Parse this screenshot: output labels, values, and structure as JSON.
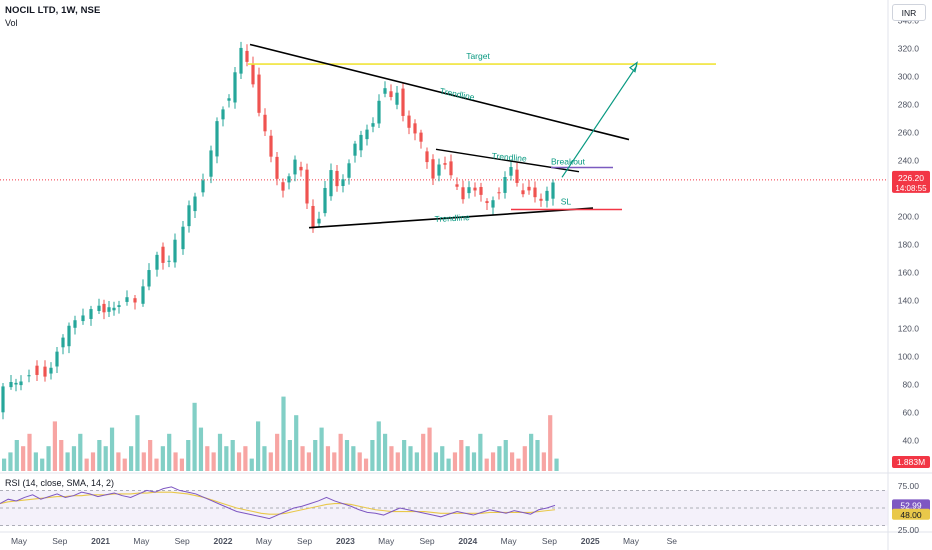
{
  "header": {
    "title": "NOCIL LTD, 1W, NSE",
    "vol_label": "Vol",
    "rsi_label": "RSI (14, close, SMA, 14, 2)",
    "currency": "INR"
  },
  "price_label": "226.20",
  "countdown_label": "14:08:55",
  "volume_label": "1.883M",
  "rsi_value_label": "52.99",
  "rsi_ma_label": "48.00",
  "colors": {
    "up": "#26a69a",
    "down": "#ef5350",
    "vol_up": "#82cfc6",
    "vol_down": "#f7a5a3",
    "target": "#f1e43a",
    "trend": "#000000",
    "arrow": "#089981",
    "breakout": "#7b5bc0",
    "sl": "#f23645",
    "rsi": "#7e57c2",
    "rsi_ma": "#e9c84a"
  },
  "annotations": {
    "target": "Target",
    "trendline_upper": "Trendline",
    "trendline_inner": "Trendline",
    "trendline_lower": "Trendline",
    "breakout": "Breakout",
    "sl": "SL"
  },
  "chart_data": {
    "type": "candlestick",
    "symbol": "NOCIL LTD",
    "interval": "1W",
    "exchange": "NSE",
    "y_axis": {
      "ticks": [
        340,
        320,
        300,
        280,
        260,
        240,
        220,
        200,
        180,
        160,
        140,
        120,
        100,
        80,
        60,
        40
      ],
      "range": [
        37,
        342
      ]
    },
    "x_axis": {
      "ticks": [
        "May",
        "Sep",
        "2021",
        "May",
        "Sep",
        "2022",
        "May",
        "Sep",
        "2023",
        "May",
        "Sep",
        "2024",
        "May",
        "Sep",
        "2025",
        "May",
        "Se"
      ]
    },
    "rsi_axis": {
      "ticks": [
        75,
        50,
        25
      ],
      "range": [
        25,
        75
      ]
    },
    "price_path": [
      [
        0,
        60
      ],
      [
        8,
        75
      ],
      [
        18,
        82
      ],
      [
        26,
        85
      ],
      [
        34,
        90
      ],
      [
        42,
        90
      ],
      [
        48,
        88
      ],
      [
        54,
        95
      ],
      [
        60,
        103
      ],
      [
        66,
        110
      ],
      [
        72,
        120
      ],
      [
        80,
        128
      ],
      [
        88,
        130
      ],
      [
        96,
        133
      ],
      [
        106,
        135
      ],
      [
        116,
        133
      ],
      [
        124,
        140
      ],
      [
        132,
        145
      ],
      [
        140,
        140
      ],
      [
        146,
        150
      ],
      [
        154,
        165
      ],
      [
        160,
        175
      ],
      [
        166,
        170
      ],
      [
        172,
        168
      ],
      [
        180,
        180
      ],
      [
        186,
        190
      ],
      [
        192,
        205
      ],
      [
        200,
        215
      ],
      [
        208,
        225
      ],
      [
        214,
        245
      ],
      [
        220,
        270
      ],
      [
        226,
        280
      ],
      [
        232,
        285
      ],
      [
        238,
        300
      ],
      [
        244,
        318
      ],
      [
        250,
        312
      ],
      [
        256,
        298
      ],
      [
        262,
        275
      ],
      [
        268,
        258
      ],
      [
        274,
        240
      ],
      [
        280,
        228
      ],
      [
        286,
        222
      ],
      [
        292,
        230
      ],
      [
        298,
        238
      ],
      [
        304,
        230
      ],
      [
        310,
        210
      ],
      [
        316,
        195
      ],
      [
        322,
        200
      ],
      [
        328,
        218
      ],
      [
        334,
        230
      ],
      [
        340,
        222
      ],
      [
        346,
        230
      ],
      [
        352,
        240
      ],
      [
        358,
        250
      ],
      [
        364,
        255
      ],
      [
        370,
        262
      ],
      [
        376,
        270
      ],
      [
        382,
        285
      ],
      [
        388,
        290
      ],
      [
        394,
        282
      ],
      [
        400,
        288
      ],
      [
        406,
        275
      ],
      [
        412,
        266
      ],
      [
        418,
        258
      ],
      [
        424,
        250
      ],
      [
        430,
        238
      ],
      [
        436,
        230
      ],
      [
        442,
        240
      ],
      [
        448,
        236
      ],
      [
        454,
        226
      ],
      [
        460,
        220
      ],
      [
        466,
        215
      ],
      [
        472,
        224
      ],
      [
        478,
        218
      ],
      [
        484,
        212
      ],
      [
        490,
        208
      ],
      [
        496,
        214
      ],
      [
        502,
        220
      ],
      [
        508,
        228
      ],
      [
        514,
        232
      ],
      [
        520,
        222
      ],
      [
        526,
        218
      ],
      [
        532,
        222
      ],
      [
        538,
        214
      ],
      [
        544,
        208
      ],
      [
        550,
        216
      ],
      [
        556,
        226
      ]
    ],
    "volume_m": [
      2,
      3,
      5,
      4,
      6,
      3,
      2,
      4,
      8,
      5,
      3,
      4,
      6,
      2,
      3,
      5,
      4,
      7,
      3,
      2,
      4,
      9,
      3,
      5,
      2,
      4,
      6,
      3,
      2,
      5,
      11,
      7,
      4,
      3,
      6,
      4,
      5,
      3,
      4,
      2,
      8,
      4,
      3,
      6,
      12,
      5,
      9,
      4,
      3,
      5,
      7,
      4,
      3,
      6,
      5,
      4,
      3,
      2,
      5,
      8,
      6,
      4,
      3,
      5,
      4,
      3,
      6,
      7,
      3,
      4,
      2,
      3,
      5,
      4,
      3,
      6,
      2,
      3,
      4,
      5,
      3,
      2,
      4,
      6,
      5,
      3,
      9,
      2
    ],
    "rsi": [
      55,
      60,
      58,
      62,
      65,
      60,
      63,
      66,
      62,
      64,
      68,
      66,
      63,
      65,
      67,
      64,
      62,
      66,
      70,
      68,
      72,
      74,
      70,
      68,
      66,
      62,
      58,
      54,
      50,
      46,
      44,
      42,
      40,
      38,
      42,
      46,
      50,
      52,
      55,
      58,
      62,
      58,
      55,
      52,
      48,
      45,
      44,
      42,
      46,
      50,
      48,
      46,
      44,
      42,
      40,
      43,
      46,
      44,
      42,
      45,
      48,
      46,
      44,
      47,
      45,
      43,
      48,
      50,
      53
    ],
    "rsi_ma": [
      55,
      57,
      58,
      59,
      60,
      61,
      62,
      63,
      63,
      64,
      64,
      65,
      65,
      65,
      66,
      66,
      66,
      67,
      67,
      68,
      68,
      68,
      67,
      66,
      64,
      62,
      59,
      56,
      53,
      50,
      48,
      46,
      44,
      43,
      43,
      44,
      46,
      48,
      50,
      52,
      54,
      55,
      55,
      54,
      52,
      50,
      48,
      47,
      46,
      46,
      46,
      46,
      46,
      45,
      44,
      44,
      44,
      44,
      44,
      44,
      45,
      45,
      45,
      45,
      45,
      45,
      46,
      47,
      48
    ],
    "levels": {
      "target": 309,
      "breakout": 235,
      "sl": 205
    },
    "trendlines": {
      "upper": {
        "from": [
          "2021-Sep",
          323
        ],
        "to": [
          "2024-Jan",
          255
        ]
      },
      "lower": {
        "from": [
          "2022-Jan",
          192
        ],
        "to": [
          "2023-Sep",
          206
        ]
      },
      "inner": {
        "from": [
          "2022-Nov",
          248
        ],
        "to": [
          "2023-Aug",
          233
        ]
      }
    }
  }
}
